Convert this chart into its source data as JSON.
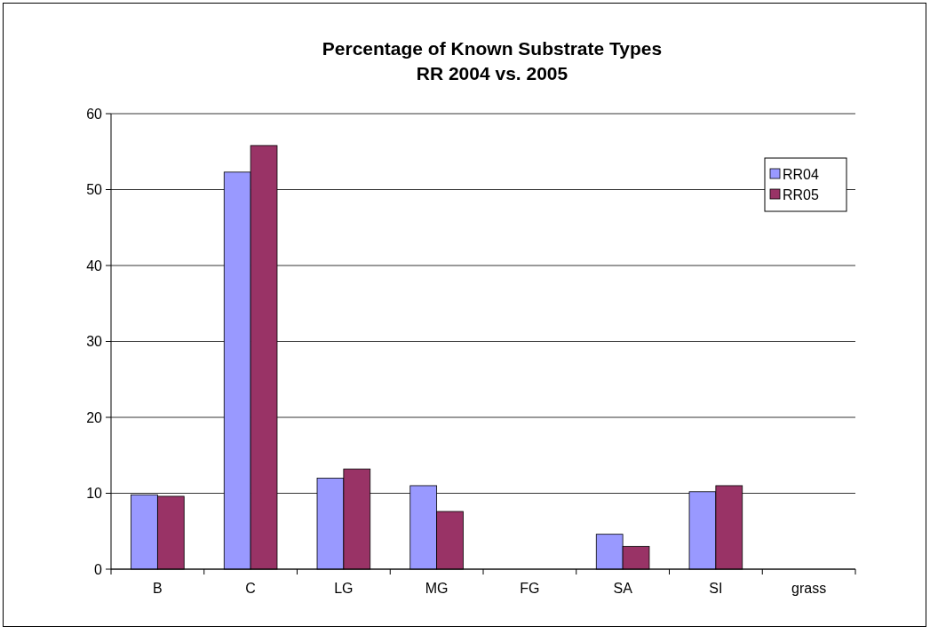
{
  "chart_data": {
    "type": "bar",
    "title": "Percentage of Known Substrate Types\nRR 2004 vs. 2005",
    "categories": [
      "B",
      "C",
      "LG",
      "MG",
      "FG",
      "SA",
      "SI",
      "grass"
    ],
    "series": [
      {
        "name": "RR04",
        "color": "#9999ff",
        "values": [
          9.8,
          52.3,
          12.0,
          11.0,
          0,
          4.6,
          10.2,
          0
        ]
      },
      {
        "name": "RR05",
        "color": "#993366",
        "values": [
          9.6,
          55.8,
          13.2,
          7.6,
          0,
          3.0,
          11.0,
          0
        ]
      }
    ],
    "ylim": [
      0,
      60
    ],
    "yticks": [
      0,
      10,
      20,
      30,
      40,
      50,
      60
    ],
    "grid": "y",
    "legend": "top right"
  }
}
